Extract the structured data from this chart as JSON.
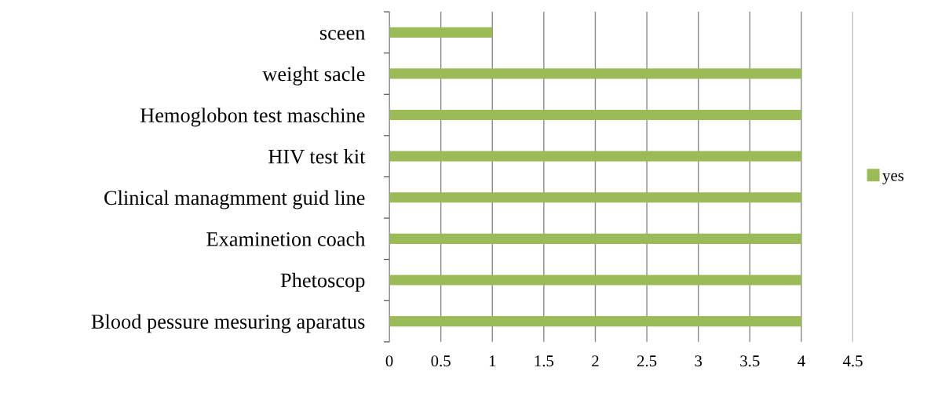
{
  "chart_data": {
    "type": "bar",
    "orientation": "horizontal",
    "categories": [
      "sceen",
      "weight sacle",
      "Hemoglobon test maschine",
      "HIV test kit",
      "Clinical managmment guid line",
      "Examinetion coach",
      "Phetoscop",
      "Blood pessure mesuring aparatus"
    ],
    "series": [
      {
        "name": "yes",
        "color": "#9bbb59",
        "values": [
          1,
          4,
          4,
          4,
          4,
          4,
          4,
          4
        ]
      }
    ],
    "xlim": [
      0,
      4.5
    ],
    "xticks": [
      0,
      0.5,
      1,
      1.5,
      2,
      2.5,
      3,
      3.5,
      4,
      4.5
    ],
    "grid": "x",
    "legend": "right"
  }
}
